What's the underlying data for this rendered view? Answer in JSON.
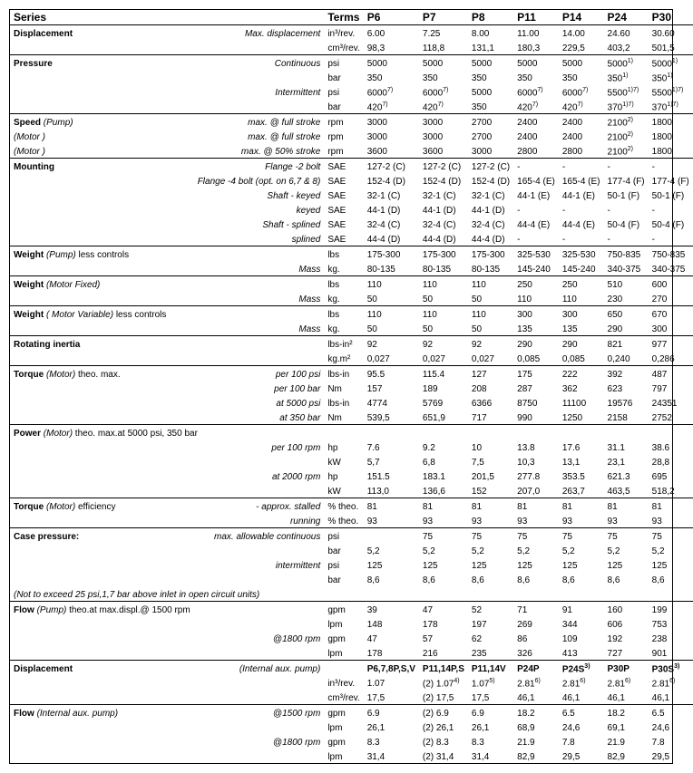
{
  "header": {
    "series": "Series",
    "terms": "Terms",
    "cols": [
      "P6",
      "P7",
      "P8",
      "P11",
      "P14",
      "P24",
      "P30"
    ]
  },
  "rows": [
    {
      "lab": "Displacement",
      "sub": "Max. displacement",
      "unit": "in³/rev.",
      "v": [
        "6.00",
        "7.25",
        "8.00",
        "11.00",
        "14.00",
        "24.60",
        "30.60"
      ],
      "b": true,
      "i": true,
      "line": false
    },
    {
      "lab": "",
      "sub": "",
      "unit": "cm³/rev.",
      "v": [
        "98,3",
        "118,8",
        "131,1",
        "180,3",
        "229,5",
        "403,2",
        "501,5"
      ],
      "line": true
    },
    {
      "lab": "Pressure",
      "sub": "Continuous",
      "unit": "psi",
      "v": [
        "5000",
        "5000",
        "5000",
        "5000",
        "5000",
        "5000¹⁾",
        "5000¹⁾"
      ],
      "b": true,
      "i": true,
      "line": false
    },
    {
      "lab": "",
      "sub": "",
      "unit": "bar",
      "v": [
        "350",
        "350",
        "350",
        "350",
        "350",
        "350¹⁾",
        "350¹⁾"
      ],
      "line": false
    },
    {
      "lab": "",
      "sub": "Intermittent",
      "unit": "psi",
      "v": [
        "6000⁷⁾",
        "6000⁷⁾",
        "5000",
        "6000⁷⁾",
        "6000⁷⁾",
        "5500¹⁾⁷⁾",
        "5500¹⁾⁷⁾"
      ],
      "i": true,
      "line": false
    },
    {
      "lab": "",
      "sub": "",
      "unit": "bar",
      "v": [
        "420⁷⁾",
        "420⁷⁾",
        "350",
        "420⁷⁾",
        "420⁷⁾",
        "370¹⁾⁷⁾",
        "370¹⁾⁷⁾"
      ],
      "line": true
    },
    {
      "lab": "Speed (Pump)",
      "sub": "max. @ full stroke",
      "unit": "rpm",
      "v": [
        "3000",
        "3000",
        "2700",
        "2400",
        "2400",
        "2100²⁾",
        "1800"
      ],
      "b": true,
      "i": true,
      "labItalicPart": "(Pump)",
      "line": false
    },
    {
      "lab": "(Motor )",
      "sub": "max. @ full stroke",
      "unit": "rpm",
      "v": [
        "3000",
        "3000",
        "2700",
        "2400",
        "2400",
        "2100²⁾",
        "1800"
      ],
      "i": true,
      "labi": true,
      "line": false
    },
    {
      "lab": "(Motor )",
      "sub": "max. @ 50% stroke",
      "unit": "rpm",
      "v": [
        "3600",
        "3600",
        "3000",
        "2800",
        "2800",
        "2100²⁾",
        "1800"
      ],
      "i": true,
      "labi": true,
      "line": true
    },
    {
      "lab": "Mounting",
      "sub": "Flange -2 bolt",
      "unit": "SAE",
      "v": [
        "127-2 (C)",
        "127-2 (C)",
        "127-2 (C)",
        "-",
        "-",
        "-",
        "-"
      ],
      "b": true,
      "i": true,
      "line": false
    },
    {
      "lab": "",
      "sub": "Flange -4 bolt (opt. on 6,7 & 8)",
      "unit": "SAE",
      "v": [
        "152-4 (D)",
        "152-4 (D)",
        "152-4 (D)",
        "165-4 (E)",
        "165-4 (E)",
        "177-4 (F)",
        "177-4 (F)"
      ],
      "i": true,
      "line": false
    },
    {
      "lab": "",
      "sub": "Shaft - keyed",
      "unit": "SAE",
      "v": [
        "32-1 (C)",
        "32-1 (C)",
        "32-1 (C)",
        "44-1 (E)",
        "44-1 (E)",
        "50-1 (F)",
        "50-1 (F)"
      ],
      "i": true,
      "line": false
    },
    {
      "lab": "",
      "sub": "keyed",
      "unit": "SAE",
      "v": [
        "44-1 (D)",
        "44-1 (D)",
        "44-1 (D)",
        "-",
        "-",
        "-",
        "-"
      ],
      "i": true,
      "line": false
    },
    {
      "lab": "",
      "sub": "Shaft - splined",
      "unit": "SAE",
      "v": [
        "32-4 (C)",
        "32-4 (C)",
        "32-4 (C)",
        "44-4 (E)",
        "44-4 (E)",
        "50-4 (F)",
        "50-4 (F)"
      ],
      "i": true,
      "line": false
    },
    {
      "lab": "",
      "sub": "splined",
      "unit": "SAE",
      "v": [
        "44-4 (D)",
        "44-4 (D)",
        "44-4 (D)",
        "-",
        "-",
        "-",
        "-"
      ],
      "i": true,
      "line": true
    },
    {
      "lab": "Weight (Pump) less controls",
      "sub": "",
      "unit": "lbs",
      "v": [
        "175-300",
        "175-300",
        "175-300",
        "325-530",
        "325-530",
        "750-835",
        "750-835"
      ],
      "b": true,
      "labItalicPart": "(Pump)",
      "line": false
    },
    {
      "lab": "",
      "sub": "Mass",
      "unit": "kg.",
      "v": [
        "80-135",
        "80-135",
        "80-135",
        "145-240",
        "145-240",
        "340-375",
        "340-375"
      ],
      "i": true,
      "line": true
    },
    {
      "lab": "Weight (Motor Fixed)",
      "sub": "",
      "unit": "lbs",
      "v": [
        "110",
        "110",
        "110",
        "250",
        "250",
        "510",
        "600"
      ],
      "b": true,
      "labItalicPart": "(Motor Fixed)",
      "line": false
    },
    {
      "lab": "",
      "sub": "Mass",
      "unit": "kg.",
      "v": [
        "50",
        "50",
        "50",
        "110",
        "110",
        "230",
        "270"
      ],
      "i": true,
      "line": true
    },
    {
      "lab": "Weight ( Motor Variable) less controls",
      "sub": "",
      "unit": "lbs",
      "v": [
        "110",
        "110",
        "110",
        "300",
        "300",
        "650",
        "670"
      ],
      "b": true,
      "labItalicPart": "( Motor Variable)",
      "line": false
    },
    {
      "lab": "",
      "sub": "Mass",
      "unit": "kg.",
      "v": [
        "50",
        "50",
        "50",
        "135",
        "135",
        "290",
        "300"
      ],
      "i": true,
      "line": true
    },
    {
      "lab": "Rotating inertia",
      "sub": "",
      "unit": "lbs-in²",
      "v": [
        "92",
        "92",
        "92",
        "290",
        "290",
        "821",
        "977"
      ],
      "b": true,
      "line": false
    },
    {
      "lab": "",
      "sub": "",
      "unit": "kg.m²",
      "v": [
        "0,027",
        "0,027",
        "0,027",
        "0,085",
        "0,085",
        "0,240",
        "0,286"
      ],
      "line": true
    },
    {
      "lab": "Torque (Motor) theo. max.",
      "sub": "per 100 psi",
      "unit": "lbs-in",
      "v": [
        "95.5",
        "115.4",
        "127",
        "175",
        "222",
        "392",
        "487"
      ],
      "b": true,
      "i": true,
      "labItalicPart": "(Motor)",
      "line": false
    },
    {
      "lab": "",
      "sub": "per 100 bar",
      "unit": "Nm",
      "v": [
        "157",
        "189",
        "208",
        "287",
        "362",
        "623",
        "797"
      ],
      "i": true,
      "line": false
    },
    {
      "lab": "",
      "sub": "at 5000 psi",
      "unit": "lbs-in",
      "v": [
        "4774",
        "5769",
        "6366",
        "8750",
        "11100",
        "19576",
        "24351"
      ],
      "i": true,
      "line": false
    },
    {
      "lab": "",
      "sub": "at 350 bar",
      "unit": "Nm",
      "v": [
        "539,5",
        "651,9",
        "717",
        "990",
        "1250",
        "2158",
        "2752"
      ],
      "i": true,
      "line": true
    },
    {
      "lab": "Power (Motor) theo. max.at 5000 psi, 350 bar",
      "sub": "",
      "unit": "",
      "v": [
        "",
        "",
        "",
        "",
        "",
        "",
        ""
      ],
      "b": true,
      "labItalicPart": "(Motor)",
      "line": false,
      "fullrow": true
    },
    {
      "lab": "",
      "sub": "per 100 rpm",
      "unit": "hp",
      "v": [
        "7.6",
        "9.2",
        "10",
        "13.8",
        "17.6",
        "31.1",
        "38.6"
      ],
      "i": true,
      "line": false
    },
    {
      "lab": "",
      "sub": "",
      "unit": "kW",
      "v": [
        "5,7",
        "6,8",
        "7,5",
        "10,3",
        "13,1",
        "23,1",
        "28,8"
      ],
      "line": false
    },
    {
      "lab": "",
      "sub": "at 2000 rpm",
      "unit": "hp",
      "v": [
        "151.5",
        "183.1",
        "201,5",
        "277.8",
        "353.5",
        "621.3",
        "695"
      ],
      "i": true,
      "line": false
    },
    {
      "lab": "",
      "sub": "",
      "unit": "kW",
      "v": [
        "113,0",
        "136,6",
        "152",
        "207,0",
        "263,7",
        "463,5",
        "518,2"
      ],
      "line": true
    },
    {
      "lab": "Torque (Motor) efficiency",
      "sub": "- approx. stalled",
      "unit": "% theo.",
      "v": [
        "81",
        "81",
        "81",
        "81",
        "81",
        "81",
        "81"
      ],
      "b": true,
      "i": true,
      "labItalicPart": "(Motor)",
      "line": false
    },
    {
      "lab": "",
      "sub": "running",
      "unit": "% theo.",
      "v": [
        "93",
        "93",
        "93",
        "93",
        "93",
        "93",
        "93"
      ],
      "i": true,
      "line": true
    },
    {
      "lab": "Case pressure:",
      "sub": "max. allowable continuous",
      "unit": "psi",
      "v": [
        "",
        "75",
        "75",
        "75",
        "75",
        "75",
        "75"
      ],
      "b": true,
      "i": true,
      "line": false
    },
    {
      "lab": "",
      "sub": "",
      "unit": "bar",
      "v": [
        "5,2",
        "5,2",
        "5,2",
        "5,2",
        "5,2",
        "5,2",
        "5,2"
      ],
      "line": false
    },
    {
      "lab": "",
      "sub": "intermittent",
      "unit": "psi",
      "v": [
        "125",
        "125",
        "125",
        "125",
        "125",
        "125",
        "125"
      ],
      "i": true,
      "line": false
    },
    {
      "lab": "",
      "sub": "",
      "unit": "bar",
      "v": [
        "8,6",
        "8,6",
        "8,6",
        "8,6",
        "8,6",
        "8,6",
        "8,6"
      ],
      "line": false
    },
    {
      "lab": "(Not to exceed 25 psi,1,7 bar above inlet in open circuit units)",
      "sub": "",
      "unit": "",
      "v": [
        "",
        "",
        "",
        "",
        "",
        "",
        ""
      ],
      "i": true,
      "fullrow": true,
      "labi": true,
      "line": true
    },
    {
      "lab": "Flow (Pump) theo.at max.displ.@ 1500 rpm",
      "sub": "",
      "unit": "gpm",
      "v": [
        "39",
        "47",
        "52",
        "71",
        "91",
        "160",
        "199"
      ],
      "b": true,
      "i": true,
      "labItalicPart": "(Pump)",
      "line": false
    },
    {
      "lab": "",
      "sub": "",
      "unit": "lpm",
      "v": [
        "148",
        "178",
        "197",
        "269",
        "344",
        "606",
        "753"
      ],
      "line": false
    },
    {
      "lab": "",
      "sub": "@1800 rpm",
      "unit": "gpm",
      "v": [
        "47",
        "57",
        "62",
        "86",
        "109",
        "192",
        "238"
      ],
      "i": true,
      "line": false
    },
    {
      "lab": "",
      "sub": "",
      "unit": "lpm",
      "v": [
        "178",
        "216",
        "235",
        "326",
        "413",
        "727",
        "901"
      ],
      "line": true
    },
    {
      "lab": "Displacement",
      "sub": "(Internal aux. pump)",
      "unit": "",
      "v": [
        "P6,7,8P,S,V",
        "P11,14P,S",
        "P11,14V",
        "P24P",
        "P24S³⁾",
        "P30P",
        "P30S³⁾"
      ],
      "b": true,
      "i": true,
      "vbold": true,
      "line": false
    },
    {
      "lab": "",
      "sub": "",
      "unit": "in³/rev.",
      "v": [
        "1.07",
        "(2) 1.07⁴⁾",
        "1.07⁵⁾",
        "2.81⁶⁾",
        "2.81⁶⁾",
        "2.81⁶⁾",
        "2.81⁶⁾"
      ],
      "line": false
    },
    {
      "lab": "",
      "sub": "",
      "unit": "cm³/rev.",
      "v": [
        "17,5",
        "(2) 17,5",
        "17,5",
        "46,1",
        "46,1",
        "46,1",
        "46,1"
      ],
      "line": true
    },
    {
      "lab": "Flow (Internal aux. pump)",
      "sub": "@1500 rpm",
      "unit": "gpm",
      "v": [
        "6.9",
        "(2) 6.9",
        "6.9",
        "18.2",
        "6.5",
        "18.2",
        "6.5"
      ],
      "b": true,
      "i": true,
      "labItalicPart": "(Internal aux. pump)",
      "line": false
    },
    {
      "lab": "",
      "sub": "",
      "unit": "lpm",
      "v": [
        "26,1",
        "(2) 26,1",
        "26,1",
        "68,9",
        "24,6",
        "69,1",
        "24,6"
      ],
      "line": false
    },
    {
      "lab": "",
      "sub": "@1800 rpm",
      "unit": "gpm",
      "v": [
        "8.3",
        "(2) 8.3",
        "8.3",
        "21.9",
        "7.8",
        "21.9",
        "7.8"
      ],
      "i": true,
      "line": false
    },
    {
      "lab": "",
      "sub": "",
      "unit": "lpm",
      "v": [
        "31,4",
        "(2) 31,4",
        "31,4",
        "82,9",
        "29,5",
        "82,9",
        "29,5"
      ],
      "line": false
    }
  ]
}
